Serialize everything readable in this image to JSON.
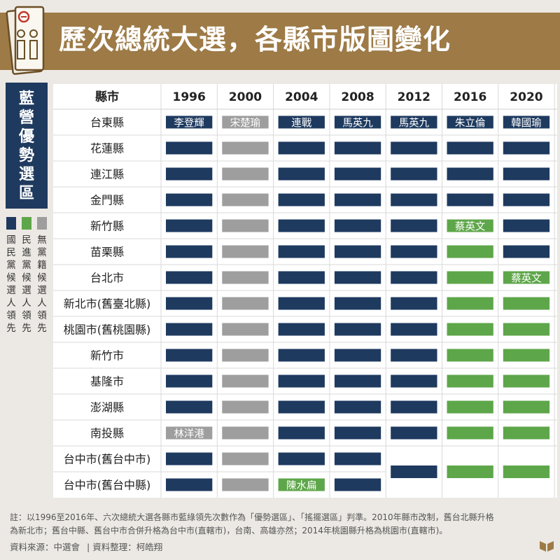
{
  "title": "歷次總統大選，各縣市版圖變化",
  "side_title": "藍營優勢選區",
  "legend": [
    {
      "label": "國民黨候選人領先",
      "color": "#1e3a5f"
    },
    {
      "label": "民進黨候選人領先",
      "color": "#5ea64a"
    },
    {
      "label": "無黨籍候選人領先",
      "color": "#9e9e9e"
    }
  ],
  "chart_data": {
    "type": "table",
    "row_header": "縣市",
    "years": [
      "1996",
      "2000",
      "2004",
      "2008",
      "2012",
      "2016",
      "2020"
    ],
    "rows": [
      {
        "name": "台東縣",
        "parties": [
          "KMT",
          "IND",
          "KMT",
          "KMT",
          "KMT",
          "KMT",
          "KMT"
        ],
        "labels": [
          "李登輝",
          "宋楚瑜",
          "連戰",
          "馬英九",
          "馬英九",
          "朱立倫",
          "韓國瑜"
        ]
      },
      {
        "name": "花蓮縣",
        "parties": [
          "KMT",
          "IND",
          "KMT",
          "KMT",
          "KMT",
          "KMT",
          "KMT"
        ],
        "labels": [
          "",
          "",
          "",
          "",
          "",
          "",
          ""
        ]
      },
      {
        "name": "連江縣",
        "parties": [
          "KMT",
          "IND",
          "KMT",
          "KMT",
          "KMT",
          "KMT",
          "KMT"
        ],
        "labels": [
          "",
          "",
          "",
          "",
          "",
          "",
          ""
        ]
      },
      {
        "name": "金門縣",
        "parties": [
          "KMT",
          "IND",
          "KMT",
          "KMT",
          "KMT",
          "KMT",
          "KMT"
        ],
        "labels": [
          "",
          "",
          "",
          "",
          "",
          "",
          ""
        ]
      },
      {
        "name": "新竹縣",
        "parties": [
          "KMT",
          "IND",
          "KMT",
          "KMT",
          "KMT",
          "DPP",
          "KMT"
        ],
        "labels": [
          "",
          "",
          "",
          "",
          "",
          "蔡英文",
          ""
        ]
      },
      {
        "name": "苗栗縣",
        "parties": [
          "KMT",
          "IND",
          "KMT",
          "KMT",
          "KMT",
          "DPP",
          "KMT"
        ],
        "labels": [
          "",
          "",
          "",
          "",
          "",
          "",
          ""
        ]
      },
      {
        "name": "台北市",
        "parties": [
          "KMT",
          "IND",
          "KMT",
          "KMT",
          "KMT",
          "DPP",
          "DPP"
        ],
        "labels": [
          "",
          "",
          "",
          "",
          "",
          "",
          "蔡英文"
        ]
      },
      {
        "name": "新北市(舊臺北縣)",
        "parties": [
          "KMT",
          "IND",
          "KMT",
          "KMT",
          "KMT",
          "DPP",
          "DPP"
        ],
        "labels": [
          "",
          "",
          "",
          "",
          "",
          "",
          ""
        ]
      },
      {
        "name": "桃園市(舊桃園縣)",
        "parties": [
          "KMT",
          "IND",
          "KMT",
          "KMT",
          "KMT",
          "DPP",
          "DPP"
        ],
        "labels": [
          "",
          "",
          "",
          "",
          "",
          "",
          ""
        ]
      },
      {
        "name": "新竹市",
        "parties": [
          "KMT",
          "IND",
          "KMT",
          "KMT",
          "KMT",
          "DPP",
          "DPP"
        ],
        "labels": [
          "",
          "",
          "",
          "",
          "",
          "",
          ""
        ]
      },
      {
        "name": "基隆市",
        "parties": [
          "KMT",
          "IND",
          "KMT",
          "KMT",
          "KMT",
          "DPP",
          "DPP"
        ],
        "labels": [
          "",
          "",
          "",
          "",
          "",
          "",
          ""
        ]
      },
      {
        "name": "澎湖縣",
        "parties": [
          "KMT",
          "IND",
          "KMT",
          "KMT",
          "KMT",
          "DPP",
          "DPP"
        ],
        "labels": [
          "",
          "",
          "",
          "",
          "",
          "",
          ""
        ]
      },
      {
        "name": "南投縣",
        "parties": [
          "IND",
          "IND",
          "KMT",
          "KMT",
          "KMT",
          "DPP",
          "DPP"
        ],
        "labels": [
          "林洋港",
          "",
          "",
          "",
          "",
          "",
          ""
        ]
      },
      {
        "name": "台中市(舊台中市)",
        "parties": [
          "KMT",
          "IND",
          "KMT",
          "KMT",
          "KMT",
          "DPP",
          "DPP"
        ],
        "labels": [
          "",
          "",
          "",
          "",
          "",
          "",
          ""
        ]
      },
      {
        "name": "台中市(舊台中縣)",
        "parties": [
          "KMT",
          "IND",
          "DPP",
          "KMT",
          "KMT",
          "DPP",
          "DPP"
        ],
        "labels": [
          "",
          "",
          "陳水扁",
          "",
          "",
          "",
          ""
        ]
      }
    ],
    "merged_rows_from_year": "2012",
    "colors": {
      "KMT": "#1e3a5f",
      "DPP": "#5ea64a",
      "IND": "#9e9e9e"
    }
  },
  "note_lines": [
    "註：以1996至2016年、六次總統大選各縣市藍綠領先次數作為「優勢選區」、「搖擺選區」判準。2010年縣市改制，舊台北縣升格",
    "為新北市；舊台中縣、舊台中市合併升格為台中市(直轄市)，台南、高雄亦然；2014年桃園縣升格為桃園市(直轄市)。"
  ],
  "source": "資料來源：中選會",
  "compiler": "資料整理：柯皓翔"
}
